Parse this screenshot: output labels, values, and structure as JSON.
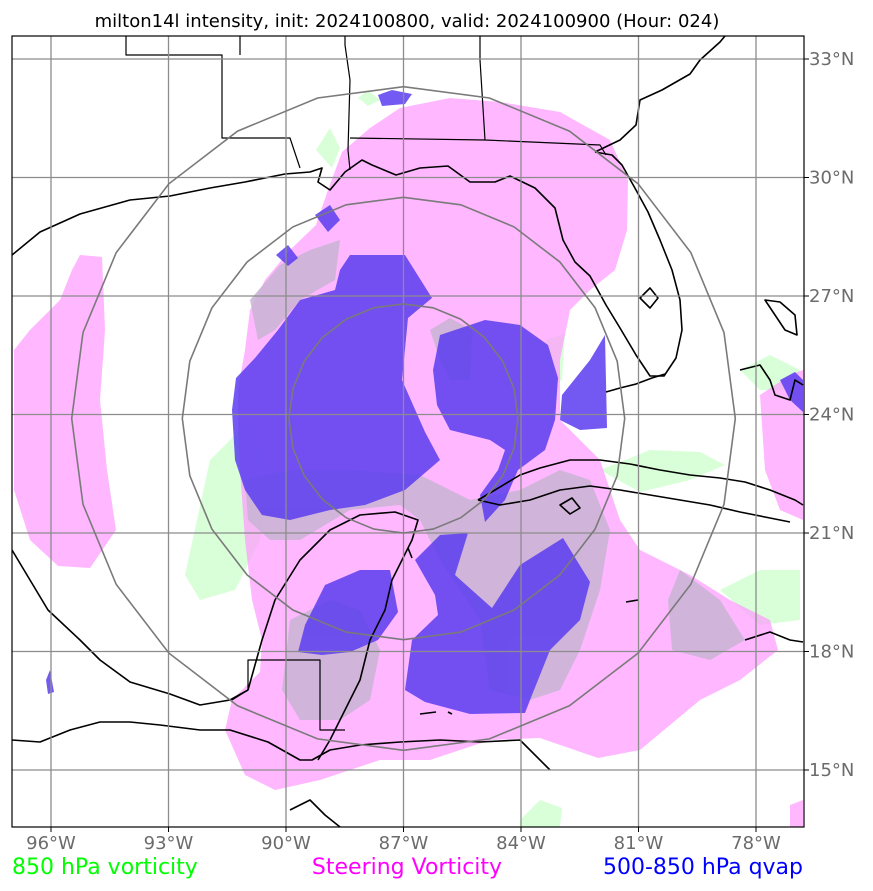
{
  "title": "milton14l intensity, init: 2024100800, valid: 2024100900 (Hour: 024)",
  "map": {
    "lon_range": [
      -97,
      -76.5
    ],
    "lat_range": [
      13.5,
      33.5
    ],
    "lon_ticks": [
      {
        "value": -96,
        "label": "96°W"
      },
      {
        "value": -93,
        "label": "93°W"
      },
      {
        "value": -90,
        "label": "90°W"
      },
      {
        "value": -87,
        "label": "87°W"
      },
      {
        "value": -84,
        "label": "84°W"
      },
      {
        "value": -81,
        "label": "81°W"
      },
      {
        "value": -78,
        "label": "78°W"
      }
    ],
    "lat_ticks": [
      {
        "value": 33,
        "label": "33°N"
      },
      {
        "value": 30,
        "label": "30°N"
      },
      {
        "value": 27,
        "label": "27°N"
      },
      {
        "value": 24,
        "label": "24°N"
      },
      {
        "value": 21,
        "label": "21°N"
      },
      {
        "value": 18,
        "label": "18°N"
      },
      {
        "value": 15,
        "label": "15°N"
      }
    ],
    "storm_center": {
      "lon": -87,
      "lat": 23.9
    },
    "range_rings_deg": [
      2.9,
      5.6,
      8.4
    ]
  },
  "legend": [
    {
      "label": "850 hPa vorticity",
      "color": "#00ff00"
    },
    {
      "label": "Steering Vorticity",
      "color": "#ff00ff"
    },
    {
      "label": "500-850 hPa qvap",
      "color": "#0000ff"
    }
  ],
  "colors": {
    "vorticity_850": "#ccffcc",
    "steering_vorticity": "#ff99ff",
    "qvap": "#5b3df0",
    "grid": "#8c8c8c",
    "coastline": "#000000"
  }
}
